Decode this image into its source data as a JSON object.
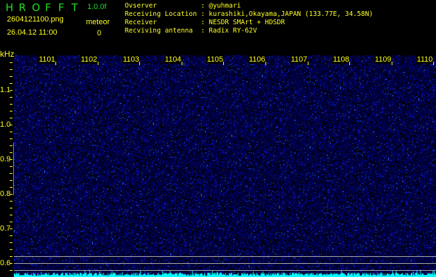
{
  "header": {
    "app_title_letters": [
      "H",
      "R",
      "O",
      "F",
      "F",
      "T"
    ],
    "version": "1.0.0f",
    "filename": "2604121100.png",
    "datetime": "26.04.12 11:00",
    "meteor_label": "meteor",
    "meteor_count": "0"
  },
  "info": [
    {
      "label": "Ovserver          ",
      "value": ": @yuhmari"
    },
    {
      "label": "Receiving Location",
      "value": ": kurashiki,Okayama,JAPAN (133.77E, 34.58N)"
    },
    {
      "label": "Receiver          ",
      "value": ": NESDR SMArt + HDSDR"
    },
    {
      "label": "Recviving antenna ",
      "value": ": Radix RY-62V"
    }
  ],
  "spectrogram": {
    "y_unit": "kHz",
    "y_range": [
      0.56,
      1.2
    ],
    "y_ticks": [
      "1.1",
      "1.0",
      "0.9",
      "0.8",
      "0.7",
      "0.6"
    ],
    "y_tick_values": [
      1.1,
      1.0,
      0.9,
      0.8,
      0.7,
      0.6
    ],
    "x_ticks": [
      "1101",
      "1102",
      "1103",
      "1104",
      "1105",
      "1106",
      "1107",
      "1108",
      "1109",
      "1110"
    ],
    "marker_lines_khz": [
      0.62,
      0.6,
      0.58
    ],
    "colors": {
      "text": "#ffff22",
      "title": "#22dd22",
      "noise": "#2020d0",
      "level": "#00ffff",
      "marker": "#aaaaaa"
    }
  }
}
